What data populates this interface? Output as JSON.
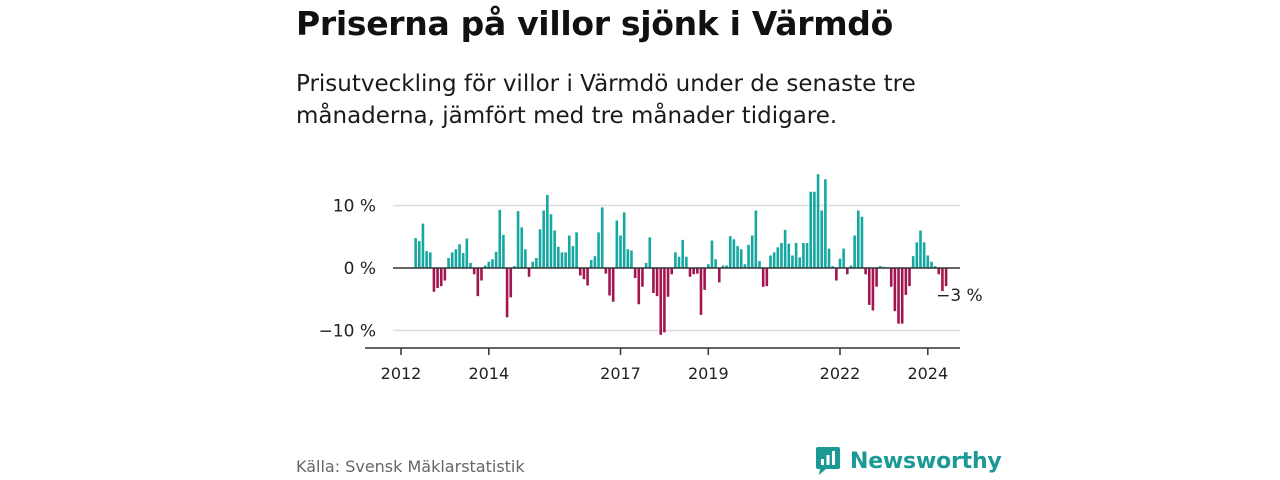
{
  "title": "Priserna på villor sjönk i Värmdö",
  "subtitle": "Prisutveckling för villor i Värmdö under de senaste tre månaderna, jämfört med tre månader tidigare.",
  "source": "Källa: Svensk Mäklarstatistik",
  "brand": {
    "name": "Newsworthy",
    "icon": "newsworthy-logo-icon"
  },
  "colors": {
    "positive": "#14a8a0",
    "negative": "#a3154f",
    "grid": "#dddddd",
    "axis": "#333333"
  },
  "chart_data": {
    "type": "bar",
    "title": "Priserna på villor sjönk i Värmdö",
    "xlabel": "",
    "ylabel": "",
    "unit": "%",
    "ylim": [
      -13,
      15
    ],
    "y_ticks": [
      {
        "value": 10,
        "label": "10 %"
      },
      {
        "value": 0,
        "label": "0 %"
      },
      {
        "value": -10,
        "label": "−10 %"
      }
    ],
    "x_ticks": [
      {
        "value": 2012,
        "label": "2012"
      },
      {
        "value": 2014,
        "label": "2014"
      },
      {
        "value": 2017,
        "label": "2017"
      },
      {
        "value": 2019,
        "label": "2019"
      },
      {
        "value": 2022,
        "label": "2022"
      },
      {
        "value": 2024,
        "label": "2024"
      }
    ],
    "grid": true,
    "start": {
      "year": 2012,
      "month": 5
    },
    "last_value_label": "−3 %",
    "values": [
      4.8,
      4.3,
      7.1,
      2.7,
      2.5,
      -3.8,
      -3.2,
      -2.9,
      -2.0,
      1.6,
      2.5,
      3.0,
      3.8,
      2.4,
      4.7,
      0.8,
      -1.0,
      -4.5,
      -2.0,
      0.4,
      1.0,
      1.4,
      2.6,
      9.3,
      5.3,
      -7.9,
      -4.7,
      0.3,
      9.1,
      6.5,
      3.0,
      -1.4,
      1.0,
      1.6,
      6.2,
      9.2,
      11.7,
      8.6,
      6.0,
      3.4,
      2.5,
      2.5,
      5.2,
      3.5,
      5.7,
      -1.2,
      -1.8,
      -2.8,
      1.3,
      1.9,
      5.7,
      9.7,
      -0.9,
      -4.4,
      -5.4,
      7.6,
      5.2,
      8.9,
      3.0,
      2.8,
      -1.6,
      -5.8,
      -3.0,
      0.8,
      4.9,
      -4.0,
      -4.5,
      -10.7,
      -10.3,
      -4.6,
      -1.0,
      2.5,
      1.8,
      4.5,
      1.8,
      -1.4,
      -1.0,
      -0.9,
      -7.5,
      -3.5,
      0.6,
      4.4,
      1.4,
      -2.3,
      0.4,
      0.4,
      5.1,
      4.6,
      3.5,
      3.0,
      0.6,
      3.7,
      5.2,
      9.2,
      1.1,
      -3.0,
      -2.9,
      2.0,
      2.5,
      3.3,
      4.0,
      6.1,
      3.9,
      2.0,
      4.0,
      1.7,
      4.0,
      4.0,
      12.2,
      12.2,
      15.0,
      9.2,
      14.2,
      3.1,
      0.3,
      -2.0,
      1.5,
      3.1,
      -1.0,
      0.4,
      5.2,
      9.2,
      8.2,
      -1.0,
      -5.9,
      -6.8,
      -3.0,
      0.3,
      0.2,
      0.1,
      -3.0,
      -6.9,
      -8.9,
      -8.9,
      -4.3,
      -2.9,
      1.9,
      4.1,
      6.0,
      4.1,
      2.0,
      1.0,
      0.3,
      -1.0,
      -3.7,
      -2.9
    ]
  }
}
